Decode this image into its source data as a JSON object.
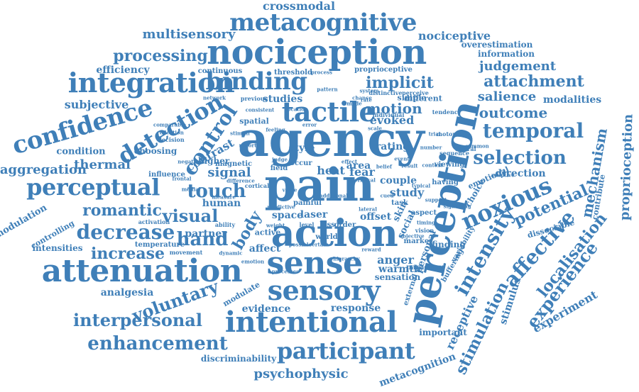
{
  "colors": {
    "text": "#3f7fb8",
    "background": "#ffffff"
  },
  "words": [
    "agency",
    "pain",
    "perception",
    "action",
    "nociception",
    "sense",
    "attenuation",
    "sensory",
    "intentional",
    "integration",
    "metacognitive",
    "binding",
    "tactile",
    "confidence",
    "perceptual",
    "noxious",
    "participant",
    "enhancement",
    "detection",
    "control",
    "temporal",
    "affective",
    "intensity",
    "selection",
    "touch",
    "decrease",
    "visual",
    "hand",
    "romantic",
    "voluntary",
    "interpersonal",
    "experience",
    "localisation",
    "processing",
    "potential",
    "stimulation",
    "increase",
    "body",
    "implicit",
    "attachment",
    "outcome",
    "judgement",
    "salience",
    "psychophysic",
    "mechanism",
    "proprioception",
    "motion",
    "multisensory",
    "crossmodal",
    "nociceptive",
    "signal",
    "thermal",
    "aggregation",
    "subjective",
    "efficiency",
    "contrast",
    "experiment",
    "anger",
    "heat",
    "study",
    "evoked",
    "direction",
    "modalities",
    "overestimation",
    "information",
    "condition",
    "choosing",
    "fear",
    "analgesia",
    "response",
    "evidence",
    "receptive",
    "stimulus",
    "metacognition",
    "modulation",
    "controlling",
    "intensities",
    "warmth",
    "personal",
    "style",
    "rating",
    "area",
    "couple",
    "affect",
    "human",
    "higher",
    "partner",
    "laser",
    "space",
    "offset",
    "skin",
    "social",
    "spatial",
    "studies",
    "threshold",
    "continuous",
    "proprioceptive",
    "different",
    "simple",
    "finding",
    "important",
    "modulate",
    "dissociable",
    "contribute",
    "choice",
    "emotional",
    "discriminability",
    "sensation",
    "active",
    "world",
    "variability",
    "buffering",
    "marker",
    "paradigm",
    "viewing",
    "having",
    "field",
    "aspect",
    "external",
    "task",
    "sequence",
    "magnetic",
    "cortical",
    "influence",
    "activation",
    "movement",
    "temperature",
    "level",
    "painful",
    "occur",
    "loss",
    "order",
    "vision",
    "neural",
    "motoric",
    "tendency",
    "perceive",
    "distinctive",
    "individual",
    "previous",
    "consistent",
    "location",
    "decision",
    "reflection",
    "comparable",
    "negative",
    "difference",
    "measure",
    "ability",
    "predictive",
    "possible",
    "hierarchy",
    "processes",
    "veridical",
    "lateral",
    "cued",
    "typical",
    "belief",
    "scale",
    "error",
    "judge",
    "report",
    "stimuli",
    "mode",
    "rate",
    "pattern",
    "number",
    "common",
    "adaptive",
    "additional",
    "certain",
    "effect",
    "event",
    "result",
    "support",
    "timing",
    "chance",
    "system",
    "objective",
    "value",
    "weight",
    "dynamic",
    "medial",
    "frontal",
    "emotion",
    "reward",
    "context",
    "signalling",
    "trial",
    "feeling",
    "process",
    "network"
  ]
}
